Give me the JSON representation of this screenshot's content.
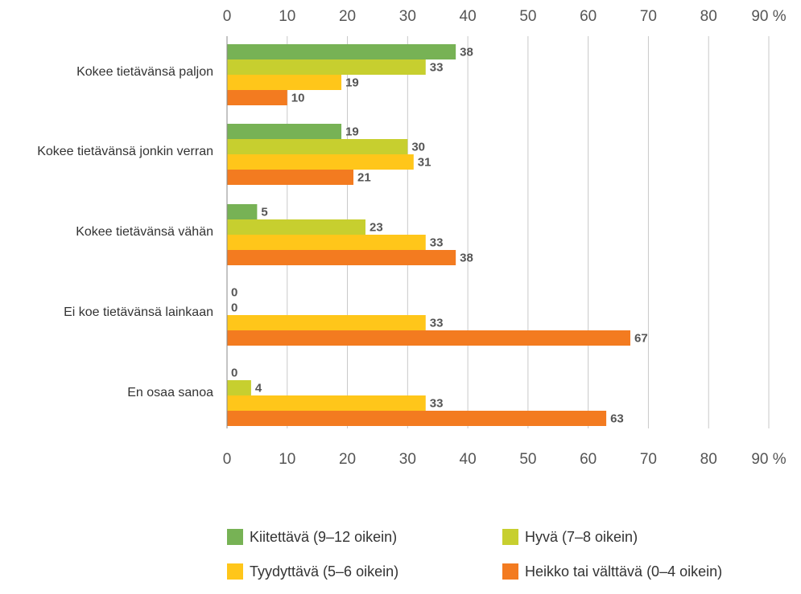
{
  "chart_data": {
    "type": "bar",
    "orientation": "horizontal",
    "categories": [
      "Kokee tietävänsä paljon",
      "Kokee tietävänsä jonkin verran",
      "Kokee tietävänsä vähän",
      "Ei koe tietävänsä lainkaan",
      "En osaa sanoa"
    ],
    "series": [
      {
        "name": "Kiitettävä (9–12 oikein)",
        "color": "#77b255",
        "values": [
          38,
          19,
          5,
          0,
          0
        ]
      },
      {
        "name": "Hyvä (7–8 oikein)",
        "color": "#c7cf2f",
        "values": [
          33,
          30,
          23,
          0,
          4
        ]
      },
      {
        "name": "Tyydyttävä (5–6 oikein)",
        "color": "#ffc61a",
        "values": [
          19,
          31,
          33,
          33,
          33
        ]
      },
      {
        "name": "Heikko tai välttävä (0–4 oikein)",
        "color": "#f37b20",
        "values": [
          10,
          21,
          38,
          67,
          63
        ]
      }
    ],
    "xlim": [
      0,
      90
    ],
    "ticks": [
      0,
      10,
      20,
      30,
      40,
      50,
      60,
      70,
      80,
      90
    ],
    "tick_labels": [
      "0",
      "10",
      "20",
      "30",
      "40",
      "50",
      "60",
      "70",
      "80",
      "90 %"
    ],
    "axis_position": "top and bottom",
    "grid": true,
    "legend_position": "bottom"
  }
}
